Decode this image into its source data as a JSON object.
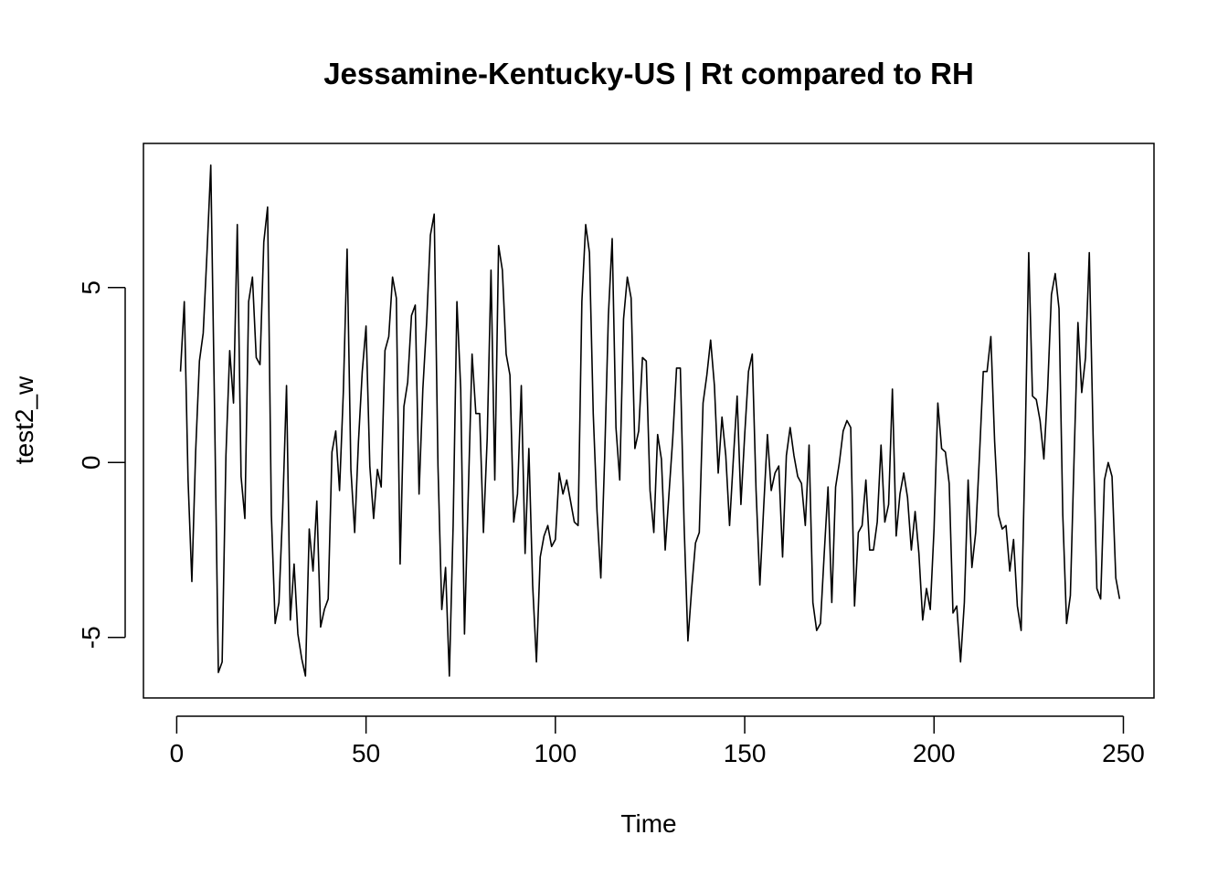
{
  "chart_data": {
    "type": "line",
    "title": "Jessamine-Kentucky-US | Rt compared to RH",
    "xlabel": "Time",
    "ylabel": "test2_w",
    "xlim": [
      1,
      248
    ],
    "ylim": [
      -6.1,
      8.6
    ],
    "x_ticks": [
      0,
      50,
      100,
      150,
      200,
      250
    ],
    "x_tick_labels": [
      "0",
      "50",
      "100",
      "150",
      "200",
      "250"
    ],
    "y_ticks": [
      -5,
      0,
      5
    ],
    "y_tick_labels": [
      "-5",
      "0",
      "5"
    ],
    "grid": false,
    "line_color": "#000000",
    "series": [
      {
        "values": [
          2.6,
          4.6,
          -0.5,
          -3.4,
          0.3,
          2.9,
          3.7,
          6.0,
          8.5,
          1.5,
          -6.0,
          -5.7,
          0.2,
          3.2,
          1.7,
          6.8,
          -0.4,
          -1.6,
          4.6,
          5.3,
          3.0,
          2.8,
          6.3,
          7.3,
          -1.5,
          -4.6,
          -4.0,
          -1.3,
          2.2,
          -4.5,
          -2.9,
          -4.9,
          -5.6,
          -6.1,
          -1.9,
          -3.1,
          -1.1,
          -4.7,
          -4.2,
          -3.9,
          0.3,
          0.9,
          -0.8,
          2.0,
          6.1,
          -0.2,
          -2.0,
          0.6,
          2.6,
          3.9,
          -0.1,
          -1.6,
          -0.2,
          -0.7,
          3.2,
          3.6,
          5.3,
          4.7,
          -2.9,
          1.6,
          2.3,
          4.2,
          4.5,
          -0.9,
          2.1,
          4.0,
          6.5,
          7.1,
          -0.1,
          -4.2,
          -3.0,
          -6.1,
          -1.8,
          4.6,
          2.1,
          -4.9,
          -0.9,
          3.1,
          1.4,
          1.4,
          -2.0,
          0.7,
          5.5,
          -0.5,
          6.2,
          5.5,
          3.1,
          2.5,
          -1.7,
          -0.9,
          2.2,
          -2.6,
          0.4,
          -3.5,
          -5.7,
          -2.7,
          -2.1,
          -1.8,
          -2.4,
          -2.2,
          -0.3,
          -0.9,
          -0.5,
          -1.1,
          -1.7,
          -1.8,
          4.6,
          6.8,
          6.0,
          1.4,
          -1.4,
          -3.3,
          0.1,
          4.2,
          6.4,
          1.0,
          -0.5,
          4.1,
          5.3,
          4.7,
          0.4,
          0.9,
          3.0,
          2.9,
          -0.8,
          -2.0,
          0.8,
          0.1,
          -2.5,
          -0.9,
          0.7,
          2.7,
          2.7,
          -1.8,
          -5.1,
          -3.6,
          -2.3,
          -2.0,
          1.7,
          2.5,
          3.5,
          2.2,
          -0.3,
          1.3,
          0.2,
          -1.8,
          0.1,
          1.9,
          -1.2,
          0.8,
          2.6,
          3.1,
          -0.8,
          -3.5,
          -1.3,
          0.8,
          -0.8,
          -0.3,
          -0.1,
          -2.7,
          0.2,
          1.0,
          0.2,
          -0.4,
          -0.6,
          -1.8,
          0.5,
          -4.0,
          -4.8,
          -4.6,
          -2.6,
          -0.7,
          -4.0,
          -0.7,
          0.0,
          0.9,
          1.2,
          1.0,
          -4.1,
          -2.0,
          -1.8,
          -0.5,
          -2.5,
          -2.5,
          -1.7,
          0.5,
          -1.7,
          -1.2,
          2.1,
          -2.1,
          -0.9,
          -0.3,
          -1.0,
          -2.5,
          -1.4,
          -2.6,
          -4.5,
          -3.6,
          -4.2,
          -1.9,
          1.7,
          0.4,
          0.3,
          -0.6,
          -4.3,
          -4.1,
          -5.7,
          -4.0,
          -0.5,
          -3.0,
          -2.0,
          0.2,
          2.6,
          2.6,
          3.6,
          0.6,
          -1.5,
          -1.9,
          -1.8,
          -3.1,
          -2.2,
          -4.1,
          -4.8,
          0.2,
          6.0,
          1.9,
          1.8,
          1.2,
          0.1,
          2.1,
          4.8,
          5.4,
          4.4,
          -1.5,
          -4.6,
          -3.8,
          0.2,
          4.0,
          2.0,
          3.0,
          6.0,
          0.8,
          -3.6,
          -3.9,
          -0.5,
          0.0,
          -0.4,
          -3.3,
          -3.9
        ]
      }
    ]
  }
}
